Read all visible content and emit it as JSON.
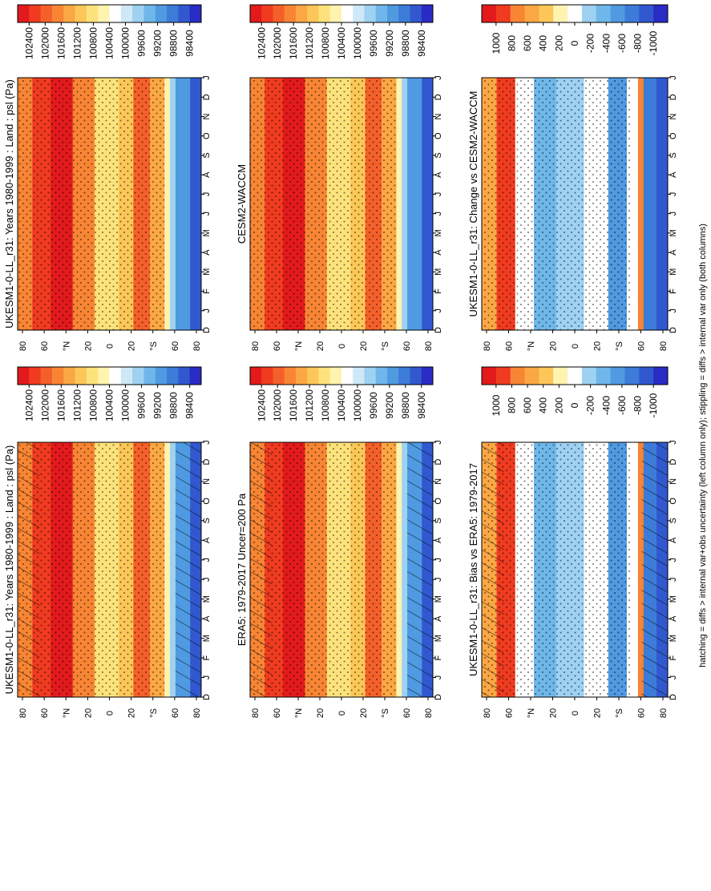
{
  "figure": {
    "footnote": "hatching = diffs > internal var+obs uncertainty (left column only); stippling = diffs > internal var only (both columns)"
  },
  "colorbars": {
    "absolute": {
      "ticks": [
        "102400",
        "102000",
        "101600",
        "101200",
        "100800",
        "100400",
        "100000",
        "99600",
        "99200",
        "98800",
        "98400"
      ],
      "colors": [
        "#e31a1c",
        "#f03b20",
        "#f5602a",
        "#f88534",
        "#fba744",
        "#fcc758",
        "#fde27c",
        "#fff3b0",
        "#ffffff",
        "#cfe8f7",
        "#9ed1f2",
        "#6fb7ea",
        "#4f9ae1",
        "#3d7bd8",
        "#3158cf",
        "#2a2bc4"
      ]
    },
    "difference": {
      "ticks": [
        "1000",
        "800",
        "600",
        "400",
        "200",
        "0",
        "-200",
        "-400",
        "-600",
        "-800",
        "-1000"
      ],
      "colors": [
        "#e31a1c",
        "#f03b20",
        "#f88534",
        "#fba744",
        "#fcc758",
        "#fff3b0",
        "#ffffff",
        "#9ed1f2",
        "#6fb7ea",
        "#4f9ae1",
        "#3d7bd8",
        "#3158cf",
        "#2a2bc4"
      ]
    }
  },
  "axes": {
    "month_labels": [
      "D",
      "J",
      "F",
      "M",
      "A",
      "M",
      "J",
      "J",
      "A",
      "S",
      "O",
      "N",
      "D",
      "J"
    ],
    "lat_labels": [
      "80",
      "60",
      "°N",
      "20",
      "0",
      "20",
      "°S",
      "60",
      "80"
    ]
  },
  "chart_data": [
    {
      "type": "heatmap",
      "title": "UKESM1-0-LL_r31: Years 1980-1999 : Land : psl (Pa)",
      "xlabel": "",
      "ylabel": "",
      "x": [
        "D",
        "J",
        "F",
        "M",
        "A",
        "M",
        "J",
        "J",
        "A",
        "S",
        "O",
        "N",
        "D",
        "J"
      ],
      "y": [
        80,
        60,
        40,
        20,
        0,
        -20,
        -40,
        -60,
        -80
      ],
      "colorbar": "absolute",
      "hatching": true,
      "stippling": true
    },
    {
      "type": "heatmap",
      "title": "ERA5: 1979-2017 Uncer=200 Pa",
      "xlabel": "",
      "ylabel": "",
      "x": [
        "D",
        "J",
        "F",
        "M",
        "A",
        "M",
        "J",
        "J",
        "A",
        "S",
        "O",
        "N",
        "D",
        "J"
      ],
      "y": [
        80,
        60,
        40,
        20,
        0,
        -20,
        -40,
        -60,
        -80
      ],
      "colorbar": "absolute",
      "hatching": true,
      "stippling": true
    },
    {
      "type": "heatmap",
      "title": "UKESM1-0-LL_r31: Bias vs ERA5: 1979-2017",
      "xlabel": "",
      "ylabel": "",
      "x": [
        "D",
        "J",
        "F",
        "M",
        "A",
        "M",
        "J",
        "J",
        "A",
        "S",
        "O",
        "N",
        "D",
        "J"
      ],
      "y": [
        80,
        60,
        40,
        20,
        0,
        -20,
        -40,
        -60,
        -80
      ],
      "colorbar": "difference",
      "hatching": true,
      "stippling": true
    },
    {
      "type": "heatmap",
      "title": "UKESM1-0-LL_r31: Years 1980-1999 : Land : psl (Pa)",
      "xlabel": "",
      "ylabel": "",
      "x": [
        "D",
        "J",
        "F",
        "M",
        "A",
        "M",
        "J",
        "J",
        "A",
        "S",
        "O",
        "N",
        "D",
        "J"
      ],
      "y": [
        80,
        60,
        40,
        20,
        0,
        -20,
        -40,
        -60,
        -80
      ],
      "colorbar": "absolute",
      "hatching": false,
      "stippling": true
    },
    {
      "type": "heatmap",
      "title": "CESM2-WACCM",
      "xlabel": "",
      "ylabel": "",
      "x": [
        "D",
        "J",
        "F",
        "M",
        "A",
        "M",
        "J",
        "J",
        "A",
        "S",
        "O",
        "N",
        "D",
        "J"
      ],
      "y": [
        80,
        60,
        40,
        20,
        0,
        -20,
        -40,
        -60,
        -80
      ],
      "colorbar": "absolute",
      "hatching": false,
      "stippling": true
    },
    {
      "type": "heatmap",
      "title": "UKESM1-0-LL_r31: Change vs CESM2-WACCM",
      "xlabel": "",
      "ylabel": "",
      "x": [
        "D",
        "J",
        "F",
        "M",
        "A",
        "M",
        "J",
        "J",
        "A",
        "S",
        "O",
        "N",
        "D",
        "J"
      ],
      "y": [
        80,
        60,
        40,
        20,
        0,
        -20,
        -40,
        -60,
        -80
      ],
      "colorbar": "difference",
      "hatching": false,
      "stippling": true
    }
  ]
}
